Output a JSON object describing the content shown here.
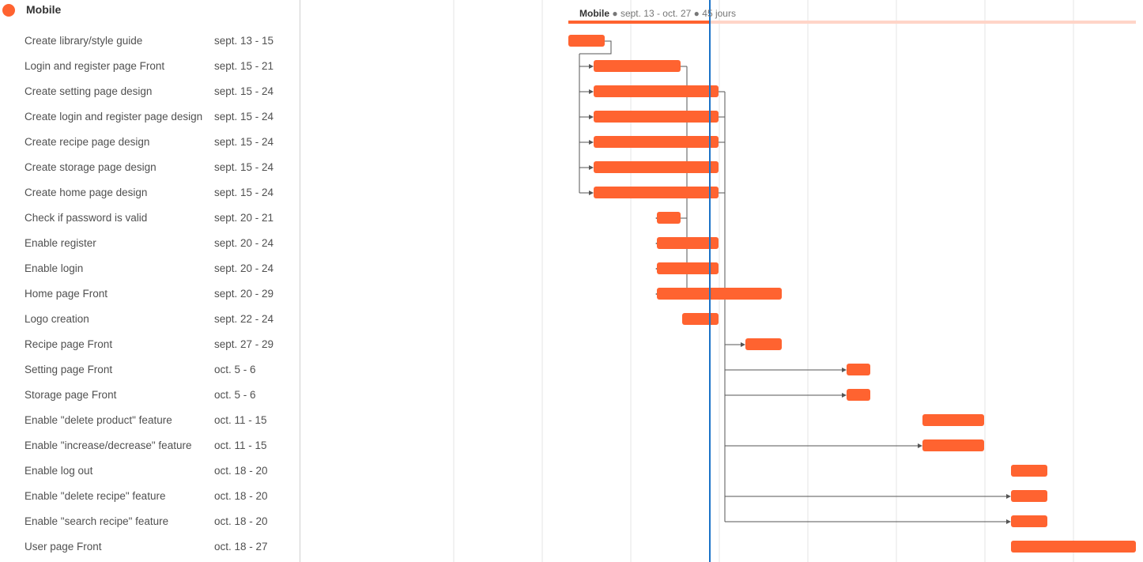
{
  "group": {
    "title": "Mobile",
    "summary_name": "Mobile",
    "summary_range": "sept. 13 - oct. 27",
    "summary_duration": "45 jours",
    "color": "#ff6330"
  },
  "colors": {
    "bar": "#ff6330",
    "summary_track": "#ffd5c8",
    "today_line": "#1a73c8",
    "connector": "#555555",
    "grid": "#e6e6e6"
  },
  "tasks": [
    {
      "name": "Create library/style guide",
      "dates": "sept. 13 - 15",
      "start": "2021-09-13",
      "end": "2021-09-15"
    },
    {
      "name": "Login and register page Front",
      "dates": "sept. 15 - 21",
      "start": "2021-09-15",
      "end": "2021-09-21"
    },
    {
      "name": "Create setting page design",
      "dates": "sept. 15 - 24",
      "start": "2021-09-15",
      "end": "2021-09-24"
    },
    {
      "name": "Create login and register page design",
      "dates": "sept. 15 - 24",
      "start": "2021-09-15",
      "end": "2021-09-24"
    },
    {
      "name": "Create recipe page design",
      "dates": "sept. 15 - 24",
      "start": "2021-09-15",
      "end": "2021-09-24"
    },
    {
      "name": "Create storage page design",
      "dates": "sept. 15 - 24",
      "start": "2021-09-15",
      "end": "2021-09-24"
    },
    {
      "name": "Create home page design",
      "dates": "sept. 15 - 24",
      "start": "2021-09-15",
      "end": "2021-09-24"
    },
    {
      "name": "Check if password is valid",
      "dates": "sept. 20 - 21",
      "start": "2021-09-20",
      "end": "2021-09-21"
    },
    {
      "name": "Enable register",
      "dates": "sept. 20 - 24",
      "start": "2021-09-20",
      "end": "2021-09-24"
    },
    {
      "name": "Enable login",
      "dates": "sept. 20 - 24",
      "start": "2021-09-20",
      "end": "2021-09-24"
    },
    {
      "name": "Home page Front",
      "dates": "sept. 20 - 29",
      "start": "2021-09-20",
      "end": "2021-09-29"
    },
    {
      "name": "Logo creation",
      "dates": "sept. 22 - 24",
      "start": "2021-09-22",
      "end": "2021-09-24"
    },
    {
      "name": "Recipe page Front",
      "dates": "sept. 27 - 29",
      "start": "2021-09-27",
      "end": "2021-09-29"
    },
    {
      "name": "Setting page Front",
      "dates": "oct. 5 - 6",
      "start": "2021-10-05",
      "end": "2021-10-06"
    },
    {
      "name": "Storage page Front",
      "dates": "oct. 5 - 6",
      "start": "2021-10-05",
      "end": "2021-10-06"
    },
    {
      "name": "Enable \"delete product\" feature",
      "dates": "oct. 11 - 15",
      "start": "2021-10-11",
      "end": "2021-10-15"
    },
    {
      "name": "Enable \"increase/decrease\" feature",
      "dates": "oct. 11 - 15",
      "start": "2021-10-11",
      "end": "2021-10-15"
    },
    {
      "name": "Enable log out",
      "dates": "oct. 18 - 20",
      "start": "2021-10-18",
      "end": "2021-10-20"
    },
    {
      "name": "Enable \"delete recipe\" feature",
      "dates": "oct. 18 - 20",
      "start": "2021-10-18",
      "end": "2021-10-20"
    },
    {
      "name": "Enable \"search recipe\" feature",
      "dates": "oct. 18 - 20",
      "start": "2021-10-18",
      "end": "2021-10-20"
    },
    {
      "name": "User page Front",
      "dates": "oct. 18 - 27",
      "start": "2021-10-18",
      "end": "2021-10-27"
    }
  ],
  "dependencies": [
    {
      "from": 0,
      "to": [
        1,
        2,
        3,
        4,
        5,
        6
      ]
    },
    {
      "from": 1,
      "to": [
        7,
        8,
        9,
        10
      ]
    },
    {
      "from": 6,
      "to": [
        12,
        13,
        14
      ]
    },
    {
      "from": 2,
      "to": [
        16
      ]
    },
    {
      "from": 3,
      "to": [
        18
      ]
    },
    {
      "from": 4,
      "to": [
        19
      ]
    }
  ],
  "today": "2021-09-24"
}
